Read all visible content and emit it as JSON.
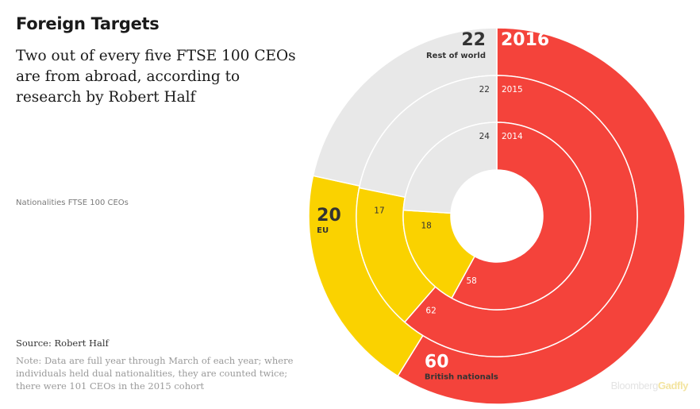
{
  "title": "Foreign Targets",
  "subtitle": "Two out of every five FTSE 100 CEOs are from abroad, according to research by Robert Half",
  "chart_caption": "Nationalities FTSE 100 CEOs",
  "source": "Source: Robert Half",
  "note": "Note: Data are full year through March of each year; where individuals held dual nationalities, they are counted twice; there were 101 CEOs in the 2015 cohort",
  "brand": {
    "part1": "Bloomberg",
    "part2": "Gadfly"
  },
  "colors": {
    "british": "#f4433b",
    "eu": "#fad200",
    "rest": "#e8e8e8",
    "separator": "#ffffff",
    "label_dark": "#333333",
    "label_light": "#ffffff"
  },
  "chart_data": {
    "type": "pie",
    "subtype": "nested-donut",
    "category_names": [
      "British nationals",
      "EU",
      "Rest of world"
    ],
    "rings": [
      {
        "year": "2016",
        "values": {
          "british": 60,
          "eu": 20,
          "rest": 22
        }
      },
      {
        "year": "2015",
        "values": {
          "british": 62,
          "eu": 17,
          "rest": 22
        }
      },
      {
        "year": "2014",
        "values": {
          "british": 58,
          "eu": 18,
          "rest": 24
        }
      }
    ]
  }
}
